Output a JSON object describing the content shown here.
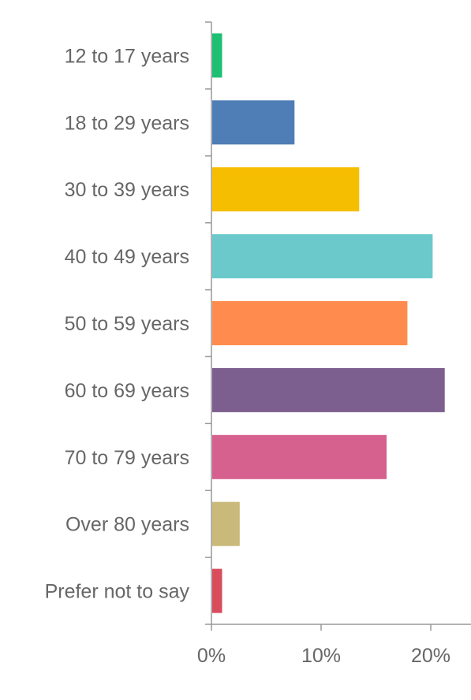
{
  "chart_data": {
    "type": "bar",
    "orientation": "horizontal",
    "categories": [
      "12 to 17 years",
      "18 to 29 years",
      "30 to 39 years",
      "40 to 49 years",
      "50 to 59 years",
      "60 to 69 years",
      "70 to 79 years",
      "Over 80 years",
      "Prefer not to say"
    ],
    "values": [
      0.9,
      7.5,
      13.4,
      20.1,
      17.8,
      21.2,
      15.9,
      2.5,
      0.9
    ],
    "colors": [
      "#1DBF72",
      "#4F7DB6",
      "#F6BE00",
      "#6BC9CB",
      "#FF8C4E",
      "#7C5F8E",
      "#D6608E",
      "#C9B97A",
      "#D94C5B"
    ],
    "xlim": [
      0,
      20
    ],
    "xticks": [
      0,
      10,
      20
    ],
    "xtick_labels": [
      "0%",
      "10%",
      "20%"
    ],
    "axis_color": "#999999",
    "grid": false,
    "legend": "none"
  }
}
